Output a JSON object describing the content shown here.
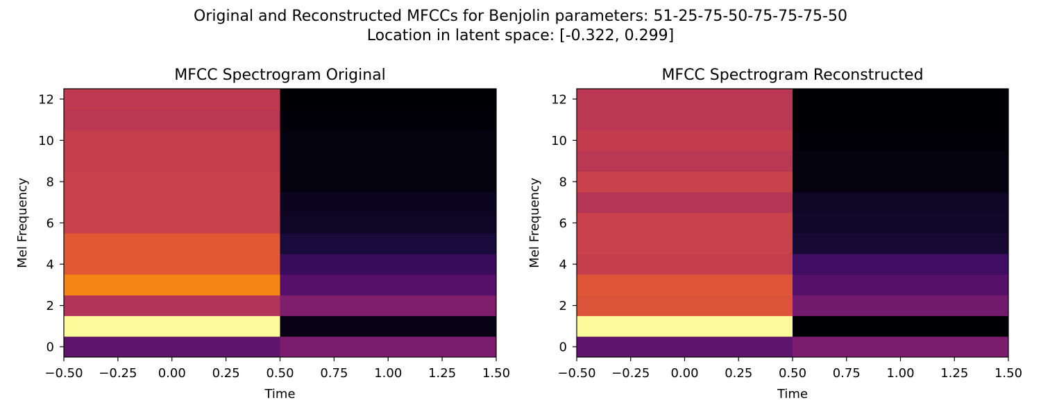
{
  "figure": {
    "suptitle_line1": "Original and Reconstructed MFCCs for Benjolin parameters: 51-25-75-50-75-75-75-50",
    "suptitle_line2": "Location in latent space: [-0.322, 0.299]"
  },
  "colormap": {
    "name": "inferno",
    "stops": [
      "#000004",
      "#1b0c41",
      "#4a0c6b",
      "#781c6d",
      "#a52c60",
      "#cf4446",
      "#ed6925",
      "#fb9b06",
      "#f7d13d",
      "#fcffa4"
    ]
  },
  "chart_data": [
    {
      "type": "heatmap",
      "title": "MFCC Spectrogram Original",
      "xlabel": "Time",
      "ylabel": "Mel Frequency",
      "xlim": [
        -0.5,
        1.5
      ],
      "ylim": [
        -0.5,
        12.5
      ],
      "x_centers": [
        0,
        1
      ],
      "y_centers": [
        0,
        1,
        2,
        3,
        4,
        5,
        6,
        7,
        8,
        9,
        10,
        11,
        12
      ],
      "xticks": [
        -0.5,
        -0.25,
        0.0,
        0.25,
        0.5,
        0.75,
        1.0,
        1.25,
        1.5
      ],
      "xtick_labels": [
        "−0.50",
        "−0.25",
        "0.00",
        "0.25",
        "0.50",
        "0.75",
        "1.00",
        "1.25",
        "1.50"
      ],
      "yticks": [
        0,
        2,
        4,
        6,
        8,
        10,
        12
      ],
      "ytick_labels": [
        "0",
        "2",
        "4",
        "6",
        "8",
        "10",
        "12"
      ],
      "z": [
        [
          0.27,
          0.34
        ],
        [
          0.99,
          0.03
        ],
        [
          0.48,
          0.35
        ],
        [
          0.73,
          0.25
        ],
        [
          0.62,
          0.18
        ],
        [
          0.62,
          0.1
        ],
        [
          0.54,
          0.06
        ],
        [
          0.54,
          0.05
        ],
        [
          0.54,
          0.02
        ],
        [
          0.53,
          0.02
        ],
        [
          0.53,
          0.02
        ],
        [
          0.5,
          0.01
        ],
        [
          0.51,
          0.0
        ]
      ]
    },
    {
      "type": "heatmap",
      "title": "MFCC Spectrogram Reconstructed",
      "xlabel": "Time",
      "ylabel": "Mel Frequency",
      "xlim": [
        -0.5,
        1.5
      ],
      "ylim": [
        -0.5,
        12.5
      ],
      "x_centers": [
        0,
        1
      ],
      "y_centers": [
        0,
        1,
        2,
        3,
        4,
        5,
        6,
        7,
        8,
        9,
        10,
        11,
        12
      ],
      "xticks": [
        -0.5,
        -0.25,
        0.0,
        0.25,
        0.5,
        0.75,
        1.0,
        1.25,
        1.5
      ],
      "xtick_labels": [
        "−0.50",
        "−0.25",
        "0.00",
        "0.25",
        "0.50",
        "0.75",
        "1.00",
        "1.25",
        "1.50"
      ],
      "yticks": [
        0,
        2,
        4,
        6,
        8,
        10,
        12
      ],
      "ytick_labels": [
        "0",
        "2",
        "4",
        "6",
        "8",
        "10",
        "12"
      ],
      "z": [
        [
          0.27,
          0.34
        ],
        [
          0.99,
          0.0
        ],
        [
          0.6,
          0.32
        ],
        [
          0.61,
          0.25
        ],
        [
          0.53,
          0.2
        ],
        [
          0.54,
          0.09
        ],
        [
          0.54,
          0.07
        ],
        [
          0.49,
          0.06
        ],
        [
          0.54,
          0.02
        ],
        [
          0.5,
          0.02
        ],
        [
          0.52,
          0.01
        ],
        [
          0.5,
          0.0
        ],
        [
          0.5,
          0.0
        ]
      ]
    }
  ]
}
